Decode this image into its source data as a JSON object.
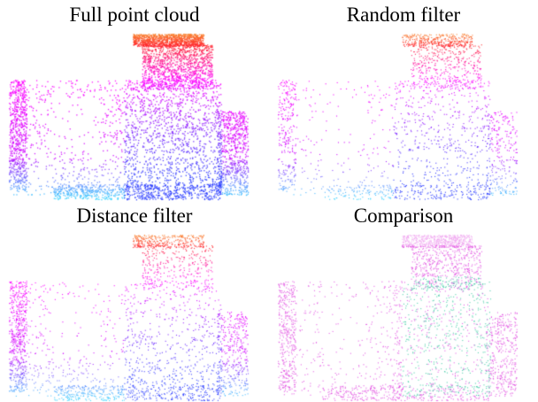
{
  "panels": [
    {
      "title": "Full point cloud",
      "variant": "full"
    },
    {
      "title": "Random filter",
      "variant": "random"
    },
    {
      "title": "Distance filter",
      "variant": "distance"
    },
    {
      "title": "Comparison",
      "variant": "comparison"
    }
  ],
  "colors": {
    "top_orange": "#f5c033",
    "red": "#ff2a2a",
    "magenta": "#ff00ff",
    "purple": "#7a22ff",
    "blue": "#2a3cff",
    "cyan": "#33d6ff",
    "comparison_teal": "#3cc9a3",
    "comparison_magenta": "#e04be0"
  }
}
